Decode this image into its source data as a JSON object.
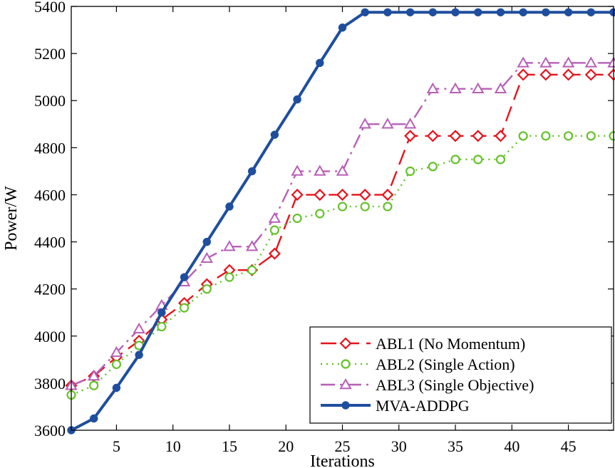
{
  "chart_data": {
    "type": "line",
    "xlabel": "Iterations",
    "ylabel": "Power/W",
    "xlim": [
      1,
      49
    ],
    "ylim": [
      3600,
      5400
    ],
    "x_ticks": [
      5,
      10,
      15,
      20,
      25,
      30,
      35,
      40,
      45
    ],
    "y_ticks": [
      3600,
      3800,
      4000,
      4200,
      4400,
      4600,
      4800,
      5000,
      5200,
      5400
    ],
    "grid": false,
    "legend_position": "bottom-right",
    "x": [
      1,
      3,
      5,
      7,
      9,
      11,
      13,
      15,
      17,
      19,
      21,
      23,
      25,
      27,
      29,
      31,
      33,
      35,
      37,
      39,
      41,
      43,
      45,
      47,
      49
    ],
    "series": [
      {
        "name": "ABL1 (No Momentum)",
        "color": "#e8121c",
        "dash": "dashed",
        "marker": "diamond",
        "values": [
          3790,
          3830,
          3910,
          3980,
          4070,
          4140,
          4220,
          4280,
          4280,
          4350,
          4600,
          4600,
          4600,
          4600,
          4600,
          4850,
          4850,
          4850,
          4850,
          4850,
          5110,
          5110,
          5110,
          5110,
          5110
        ]
      },
      {
        "name": "ABL2 (Single Action)",
        "color": "#66c22a",
        "dash": "dotted",
        "marker": "circle",
        "values": [
          3750,
          3790,
          3880,
          3960,
          4040,
          4120,
          4200,
          4250,
          4280,
          4450,
          4500,
          4520,
          4550,
          4550,
          4550,
          4700,
          4720,
          4750,
          4750,
          4750,
          4850,
          4850,
          4850,
          4850,
          4850
        ]
      },
      {
        "name": "ABL3 (Single Objective)",
        "color": "#b85fb8",
        "dash": "dashdot",
        "marker": "triangle",
        "values": [
          3790,
          3830,
          3930,
          4030,
          4130,
          4230,
          4330,
          4380,
          4380,
          4500,
          4700,
          4700,
          4700,
          4900,
          4900,
          4900,
          5050,
          5050,
          5050,
          5050,
          5160,
          5160,
          5160,
          5160,
          5160
        ]
      },
      {
        "name": "MVA-ADDPG",
        "color": "#1f4e9e",
        "dash": "solid",
        "marker": "dot",
        "values": [
          3600,
          3650,
          3780,
          3920,
          4100,
          4250,
          4400,
          4550,
          4700,
          4855,
          5005,
          5160,
          5310,
          5375,
          5375,
          5375,
          5375,
          5375,
          5375,
          5375,
          5375,
          5375,
          5375,
          5375,
          5375
        ]
      }
    ]
  }
}
